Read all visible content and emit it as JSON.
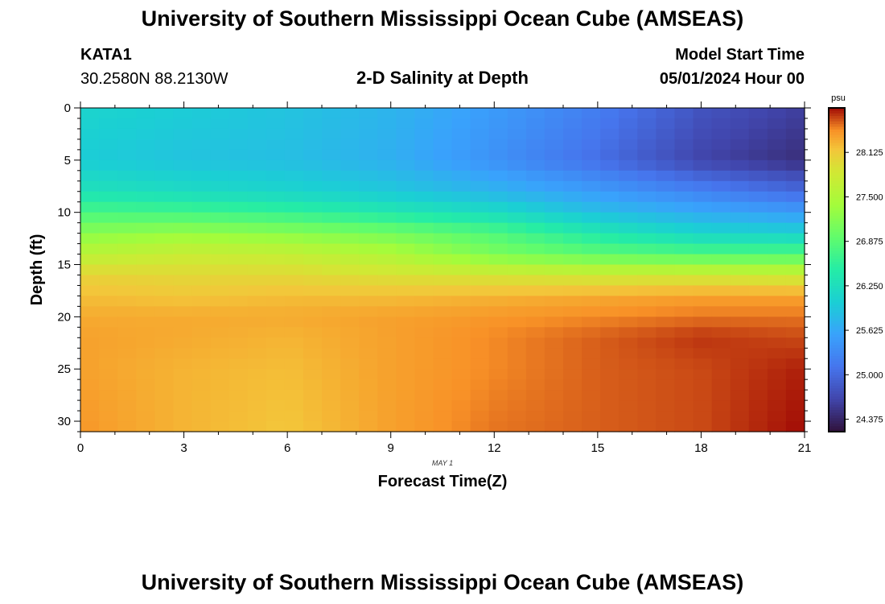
{
  "header": {
    "title": "University of Southern Mississippi Ocean Cube (AMSEAS)",
    "station_id": "KATA1",
    "coordinates": "30.2580N  88.2130W",
    "subtitle": "2-D Salinity at Depth",
    "model_start_label": "Model Start Time",
    "model_start_value": "05/01/2024 Hour 00"
  },
  "footer": {
    "title": "University of Southern Mississippi Ocean Cube (AMSEAS)"
  },
  "chart_data": {
    "type": "heatmap",
    "title": "2-D Salinity at Depth",
    "xlabel": "Forecast Time(Z)",
    "ylabel": "Depth (ft)",
    "date_label": "MAY 1",
    "x_range": [
      0,
      21
    ],
    "y_range": [
      0,
      31
    ],
    "x_ticks": [
      0,
      3,
      6,
      9,
      12,
      15,
      18,
      21
    ],
    "y_ticks": [
      0,
      5,
      10,
      15,
      20,
      25,
      30
    ],
    "x_cells": 39,
    "y_cells": 31,
    "colorbar": {
      "unit": "psu",
      "ticks": [
        28.125,
        27.5,
        26.875,
        26.25,
        25.625,
        25.0,
        24.375
      ],
      "tick_labels": [
        "28.125",
        "27.500",
        "26.875",
        "26.250",
        "25.625",
        "25.000",
        "24.375"
      ],
      "range": [
        24.2,
        28.75
      ]
    },
    "value_grid_hours": [
      0,
      3,
      6,
      9,
      12,
      15,
      18,
      21
    ],
    "value_grid_depths": [
      0,
      5,
      8,
      10,
      12,
      14,
      16,
      18,
      20,
      22,
      25,
      31
    ],
    "values": [
      [
        26.1,
        26.0,
        25.9,
        25.75,
        25.5,
        25.2,
        24.8,
        24.6
      ],
      [
        26.0,
        25.9,
        25.85,
        25.7,
        25.4,
        25.05,
        24.65,
        24.45
      ],
      [
        26.3,
        26.2,
        26.1,
        25.95,
        25.75,
        25.5,
        25.25,
        25.0
      ],
      [
        26.75,
        26.7,
        26.6,
        26.4,
        26.2,
        25.85,
        25.65,
        25.5
      ],
      [
        27.2,
        27.3,
        27.2,
        27.05,
        26.8,
        26.4,
        26.1,
        26.05
      ],
      [
        27.6,
        27.75,
        27.7,
        27.5,
        27.1,
        26.9,
        26.8,
        26.8
      ],
      [
        28.05,
        28.0,
        28.0,
        27.9,
        27.85,
        27.8,
        27.8,
        27.75
      ],
      [
        28.2,
        28.15,
        28.2,
        28.2,
        28.25,
        28.3,
        28.35,
        28.35
      ],
      [
        28.3,
        28.3,
        28.3,
        28.35,
        28.4,
        28.45,
        28.5,
        28.5
      ],
      [
        28.35,
        28.3,
        28.25,
        28.35,
        28.45,
        28.55,
        28.65,
        28.6
      ],
      [
        28.35,
        28.25,
        28.2,
        28.35,
        28.45,
        28.55,
        28.6,
        28.7
      ],
      [
        28.4,
        28.25,
        28.15,
        28.35,
        28.5,
        28.55,
        28.6,
        28.75
      ]
    ]
  }
}
